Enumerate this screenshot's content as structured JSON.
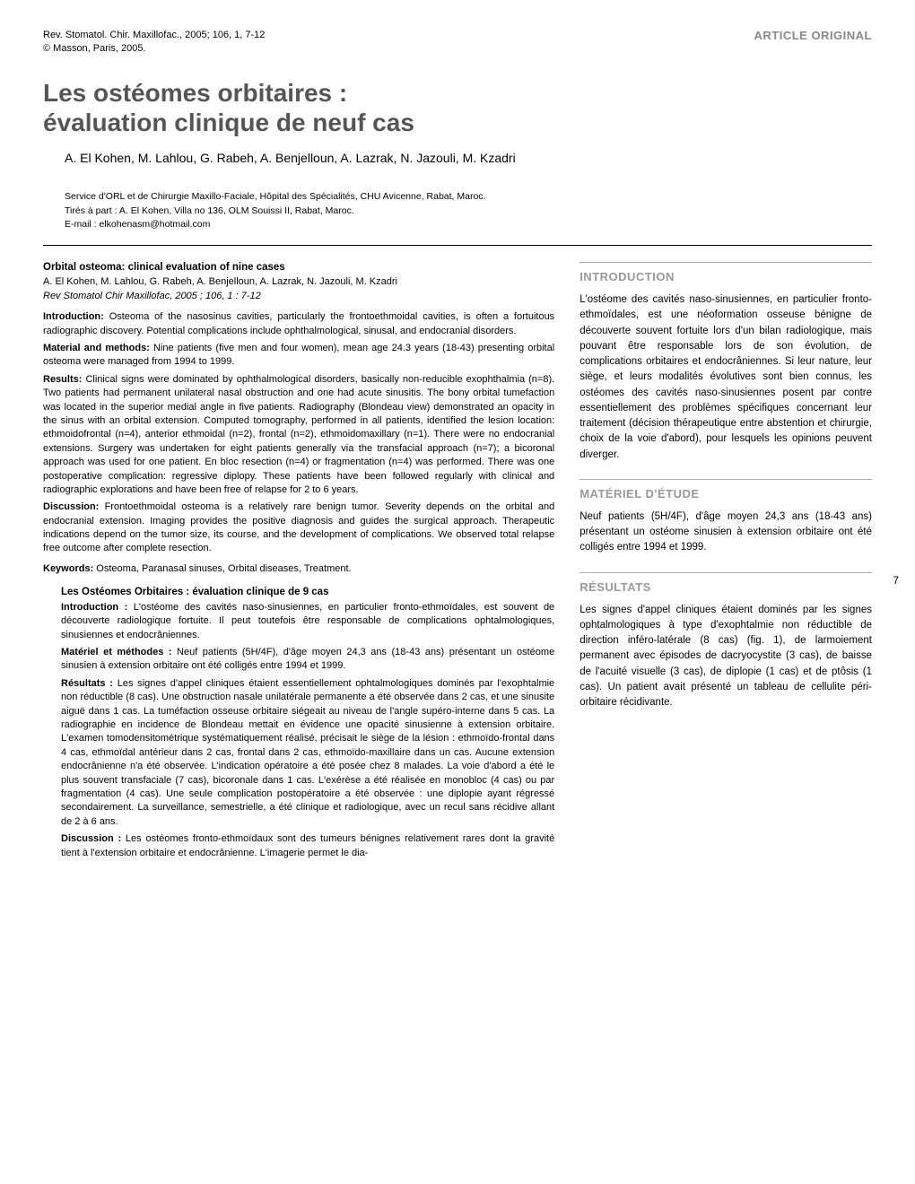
{
  "journal": {
    "citation": "Rev. Stomatol. Chir. Maxillofac., 2005; 106, 1, 7-12",
    "copyright": "© Masson, Paris, 2005."
  },
  "article_type": "ARTICLE ORIGINAL",
  "title_line1": "Les ostéomes orbitaires :",
  "title_line2": "évaluation clinique de neuf cas",
  "authors": "A. El Kohen, M. Lahlou, G. Rabeh, A. Benjelloun, A. Lazrak, N. Jazouli, M. Kzadri",
  "affiliation_line1": "Service d'ORL et de Chirurgie Maxillo-Faciale, Hôpital des Spécialités, CHU Avicenne, Rabat, Maroc.",
  "affiliation_line2": "Tirés à part : A. El Kohen, Villa no 136, OLM Souissi II, Rabat, Maroc.",
  "affiliation_email": "E-mail : elkohenasm@hotmail.com",
  "en_abstract": {
    "title": "Orbital osteoma: clinical evaluation of nine cases",
    "authors": "A. El Kohen, M. Lahlou, G. Rabeh, A. Benjelloun, A. Lazrak, N. Jazouli, M. Kzadri",
    "citation": "Rev Stomatol Chir Maxillofac, 2005 ; 106, 1 : 7-12",
    "intro_label": "Introduction:",
    "intro_text": " Osteoma of the nasosinus cavities, particularly the frontoethmoidal cavities, is often a fortuitous radiographic discovery. Potential complications include ophthalmological, sinusal, and endocranial disorders.",
    "methods_label": "Material and methods:",
    "methods_text": " Nine patients (five men and four women), mean age 24.3 years (18-43) presenting orbital osteoma were managed from 1994 to 1999.",
    "results_label": "Results:",
    "results_text": " Clinical signs were dominated by ophthalmological disorders, basically non-reducible exophthalmia (n=8). Two patients had permanent unilateral nasal obstruction and one had acute sinusitis. The bony orbital tumefaction was located in the superior medial angle in five patients. Radiography (Blondeau view) demonstrated an opacity in the sinus with an orbital extension. Computed tomography, performed in all patients, identified the lesion location: ethmoidofrontal (n=4), anterior ethmoidal (n=2), frontal (n=2), ethmoidomaxillary (n=1). There were no endocranial extensions. Surgery was undertaken for eight patients generally via the transfacial approach (n=7); a bicoronal approach was used for one patient. En bloc resection (n=4) or fragmentation (n=4) was performed. There was one postoperative complication: regressive diplopy. These patients have been followed regularly with clinical and radiographic explorations and have been free of relapse for 2 to 6 years.",
    "discussion_label": "Discussion:",
    "discussion_text": " Frontoethmoidal osteoma is a relatively rare benign tumor. Severity depends on the orbital and endocranial extension. Imaging provides the positive diagnosis and guides the surgical approach. Therapeutic indications depend on the tumor size, its course, and the development of complications. We observed total relapse free outcome after complete resection.",
    "keywords_label": "Keywords:",
    "keywords_text": " Osteoma, Paranasal sinuses, Orbital diseases, Treatment."
  },
  "fr_abstract": {
    "title": "Les Ostéomes Orbitaires : évaluation clinique de 9 cas",
    "intro_label": "Introduction :",
    "intro_text": " L'ostéome des cavités naso-sinusiennes, en particulier fronto-ethmoïdales, est souvent de découverte radiologique fortuite. Il peut toutefois être responsable de complications ophtalmologiques, sinusiennes et endocrâniennes.",
    "methods_label": "Matériel et méthodes :",
    "methods_text": " Neuf patients (5H/4F), d'âge moyen 24,3 ans (18-43 ans) présentant un ostéome sinusien à extension orbitaire ont été colligés entre 1994 et 1999.",
    "results_label": "Résultats :",
    "results_text": " Les signes d'appel cliniques étaient essentiellement ophtalmologiques dominés par l'exophtalmie non réductible (8 cas). Une obstruction nasale unilatérale permanente a été observée dans 2 cas, et une sinusite aiguë dans 1 cas. La tuméfaction osseuse orbitaire siégeait au niveau de l'angle supéro-interne dans 5 cas. La radiographie en incidence de Blondeau mettait en évidence une opacité sinusienne à extension orbitaire. L'examen tomodensitométrique systématiquement réalisé, précisait le siège de la lésion : ethmoïdo-frontal dans 4 cas, ethmoïdal antérieur dans 2 cas, frontal dans 2 cas, ethmoïdo-maxillaire dans un cas. Aucune extension endocrânienne n'a été observée. L'indication opératoire a été posée chez 8 malades. La voie d'abord a été le plus souvent transfaciale (7 cas), bicoronale dans 1 cas. L'exérèse a été réalisée en monobloc (4 cas) ou par fragmentation (4 cas). Une seule complication postopératoire a été observée : une diplopie ayant régressé secondairement. La surveillance, semestrielle, a été clinique et radiologique, avec un recul sans récidive allant de 2 à 6 ans.",
    "discussion_label": "Discussion :",
    "discussion_text": " Les ostéomes fronto-ethmoïdaux sont des tumeurs bénignes relativement rares dont la gravité tient à l'extension orbitaire et endocrânienne. L'imagerie permet le dia-"
  },
  "sections": {
    "intro_heading": "INTRODUCTION",
    "intro_body": "L'ostéome des cavités naso-sinusiennes, en particulier fronto-ethmoïdales, est une néoformation osseuse bénigne de découverte souvent fortuite lors d'un bilan radiologique, mais pouvant être responsable lors de son évolution, de complications orbitaires et endocrâniennes. Si leur nature, leur siège, et leurs modalités évolutives sont bien connus, les ostéomes des cavités naso-sinusiennes posent par contre essentiellement des problèmes spécifiques concernant leur traitement (décision thérapeutique entre abstention et chirurgie, choix de la voie d'abord), pour lesquels les opinions peuvent diverger.",
    "material_heading": "MATÉRIEL D'ÉTUDE",
    "material_body": "Neuf patients (5H/4F), d'âge moyen 24,3 ans (18-43 ans) présentant un ostéome sinusien à extension orbitaire ont été colligés entre 1994 et 1999.",
    "results_heading": "RÉSULTATS",
    "results_body": "Les signes d'appel cliniques étaient dominés par les signes ophtalmologiques à type d'exophtalmie non réductible de direction inféro-latérale (8 cas) (fig. 1), de larmoiement permanent avec épisodes de dacryocystite (3 cas), de baisse de l'acuité visuelle (3 cas), de diplopie (1 cas) et de ptôsis (1 cas). Un patient avait présenté un tableau de cellulite péri-orbitaire récidivante."
  },
  "page_number": "7"
}
